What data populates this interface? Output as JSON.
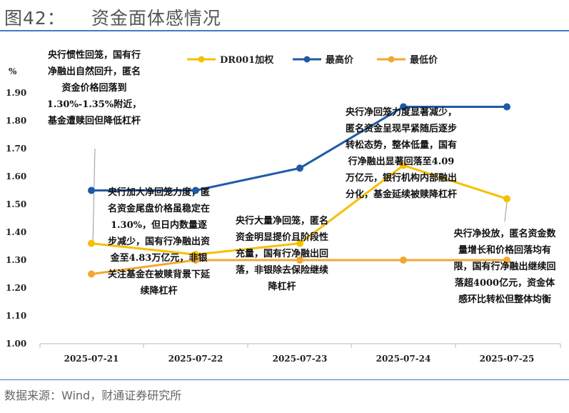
{
  "title": {
    "figure_no": "图42：",
    "text": "资金面体感情况"
  },
  "source": "数据来源：Wind，财通证券研究所",
  "chart_data": {
    "type": "line",
    "title": "",
    "ylabel": "%",
    "xlabel": "",
    "categories": [
      "2025-07-21",
      "2025-07-22",
      "2025-07-23",
      "2025-07-24",
      "2025-07-25"
    ],
    "ylim": [
      1.0,
      1.9
    ],
    "yticks": [
      "1.00",
      "1.10",
      "1.20",
      "1.30",
      "1.40",
      "1.50",
      "1.60",
      "1.70",
      "1.80",
      "1.90"
    ],
    "grid": false,
    "legend": "top",
    "series": [
      {
        "name": "DR001加权",
        "color": "#f5c000",
        "values": [
          1.36,
          1.32,
          1.36,
          1.64,
          1.52
        ]
      },
      {
        "name": "最高价",
        "color": "#1f5aa6",
        "values": [
          1.55,
          1.55,
          1.63,
          1.85,
          1.85
        ]
      },
      {
        "name": "最低价",
        "color": "#f0a830",
        "values": [
          1.25,
          1.3,
          1.3,
          1.3,
          1.3
        ]
      }
    ],
    "annotations": [
      "央行惯性回笼，国有行净融出自然回升，匿名资金价格回落到1.30%-1.35%附近，基金遭赎回但降低杠杆",
      "央行加大净回笼力度，匿名资金尾盘价格虽稳定在1.30%，但日内数量逐步减少，国有行净融出资金至4.83万亿元，非银关注基金在被赎背景下延续降杠杆",
      "央行大量净回笼，匿名资金明显提价且阶段性充量，国有行净融出回落，非银除去保险继续降杠杆",
      "央行净回笼力度显著减少，匿名资金呈现早紧随后逐步转松态势，整体低量，国有行净融出显著回落至4.09万亿元，银行机构内部融出分化，基金延续被赎降杠杆",
      "央行净投放，匿名资金数量增长和价格回落均有限，国有行净融出继续回落超4000亿元，资金体感环比转松但整体均衡"
    ]
  }
}
